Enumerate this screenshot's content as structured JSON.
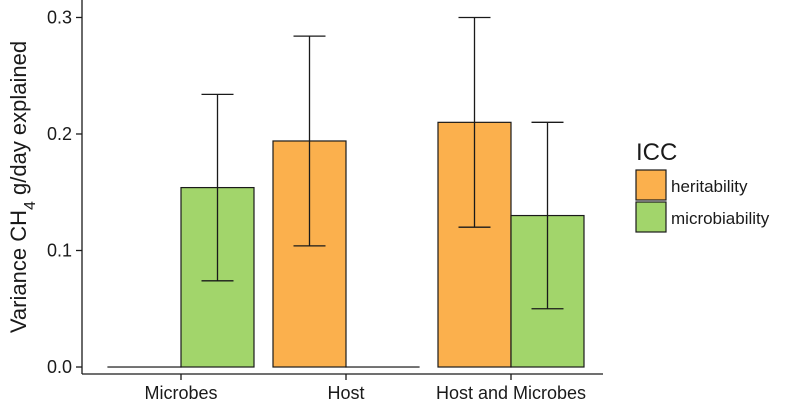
{
  "chart_data": {
    "type": "bar",
    "categories": [
      "Microbes",
      "Host",
      "Host and Microbes"
    ],
    "series": [
      {
        "name": "heritability",
        "color": "#fbb04d",
        "values": [
          0.0,
          0.194,
          0.21
        ],
        "err_low": [
          null,
          0.104,
          0.12
        ],
        "err_high": [
          null,
          0.284,
          0.3
        ]
      },
      {
        "name": "microbiability",
        "color": "#a2d56b",
        "values": [
          0.154,
          0.0,
          0.13
        ],
        "err_low": [
          0.074,
          null,
          0.05
        ],
        "err_high": [
          0.234,
          null,
          0.21
        ]
      }
    ],
    "ylabel_prefix": "Variance CH",
    "ylabel_subscript": "4",
    "ylabel_suffix": " g/day explained",
    "yticks": [
      "0.0",
      "0.1",
      "0.2",
      "0.3"
    ],
    "ytick_values": [
      0.0,
      0.1,
      0.2,
      0.3
    ],
    "ylim": [
      -0.006,
      0.315
    ],
    "legend_title": "ICC",
    "legend_position": "right",
    "grid": false
  }
}
